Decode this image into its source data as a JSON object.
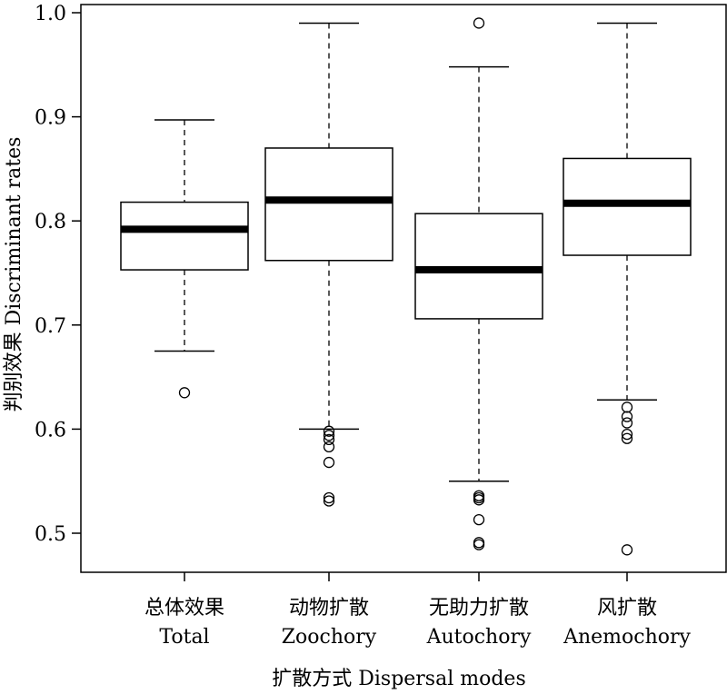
{
  "chart_data": {
    "type": "boxplot",
    "xlabel": "扩散方式 Dispersal modes",
    "ylabel": "判别效果 Discriminant rates",
    "ylim": [
      0.46,
      1.0
    ],
    "yticks": [
      0.5,
      0.6,
      0.7,
      0.8,
      0.9,
      1.0
    ],
    "ytick_labels": [
      "0.5",
      "0.6",
      "0.7",
      "0.8",
      "0.9",
      "1.0"
    ],
    "categories": [
      {
        "label_cn": "总体效果",
        "label_en": "Total",
        "whisker_low": 0.675,
        "q1": 0.753,
        "median": 0.792,
        "q3": 0.818,
        "whisker_high": 0.897,
        "outliers": [
          0.635
        ]
      },
      {
        "label_cn": "动物扩散",
        "label_en": "Zoochory",
        "whisker_low": 0.6,
        "q1": 0.762,
        "median": 0.82,
        "q3": 0.87,
        "whisker_high": 0.99,
        "outliers": [
          0.598,
          0.594,
          0.59,
          0.583,
          0.568,
          0.534,
          0.531
        ]
      },
      {
        "label_cn": "无助力扩散",
        "label_en": "Autochory",
        "whisker_low": 0.55,
        "q1": 0.706,
        "median": 0.753,
        "q3": 0.807,
        "whisker_high": 0.948,
        "outliers": [
          0.99,
          0.536,
          0.534,
          0.532,
          0.513,
          0.491,
          0.489
        ]
      },
      {
        "label_cn": "风扩散",
        "label_en": "Anemochory",
        "whisker_low": 0.628,
        "q1": 0.767,
        "median": 0.817,
        "q3": 0.86,
        "whisker_high": 0.99,
        "outliers": [
          0.621,
          0.612,
          0.606,
          0.595,
          0.591,
          0.484
        ]
      }
    ]
  }
}
